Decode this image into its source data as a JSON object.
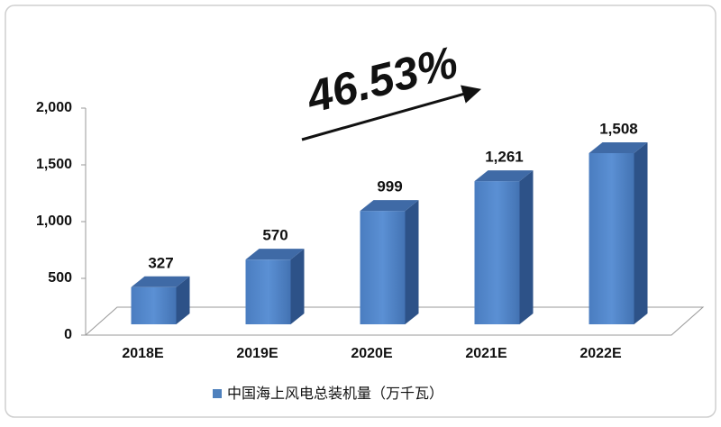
{
  "chart_data": {
    "type": "bar3d",
    "annotation": "46.53%",
    "categories": [
      "2018E",
      "2019E",
      "2020E",
      "2021E",
      "2022E"
    ],
    "series": [
      {
        "name": "中国海上风电总装机量（万千瓦）",
        "color": "#4f81bd",
        "values": [
          327,
          570,
          999,
          1261,
          1508
        ],
        "value_labels": [
          "327",
          "570",
          "999",
          "1,261",
          "1,508"
        ]
      }
    ],
    "ylim": [
      0,
      2000
    ],
    "yticks": [
      0,
      500,
      {
        "value": 1000,
        "label": "1,000"
      },
      {
        "value": 1500,
        "label": "1,500"
      },
      {
        "value": 2000,
        "label": "2,000"
      }
    ],
    "legend": "bottom"
  }
}
